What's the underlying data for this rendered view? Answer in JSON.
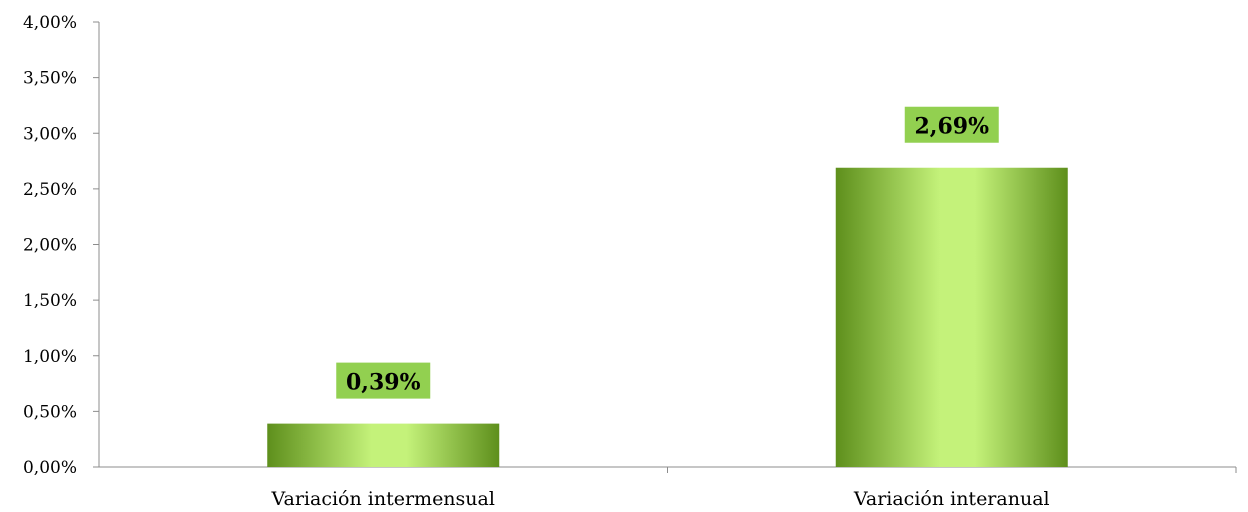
{
  "chart_data": {
    "type": "bar",
    "categories": [
      "Variación intermensual",
      "Variación interanual"
    ],
    "values": [
      0.39,
      2.69
    ],
    "data_labels": [
      "0,39%",
      "2,69%"
    ],
    "ylim": [
      0,
      4
    ],
    "y_ticks": [
      0,
      0.5,
      1,
      1.5,
      2,
      2.5,
      3,
      3.5,
      4
    ],
    "y_tick_labels": [
      "0,00%",
      "0,50%",
      "1,00%",
      "1,50%",
      "2,00%",
      "2,50%",
      "3,00%",
      "3,50%",
      "4,00%"
    ],
    "grid": false,
    "legend": "none",
    "bar_color_dark": "#5e8f1c",
    "bar_color_light": "#c4f27a",
    "label_bg_color": "#92d050"
  }
}
